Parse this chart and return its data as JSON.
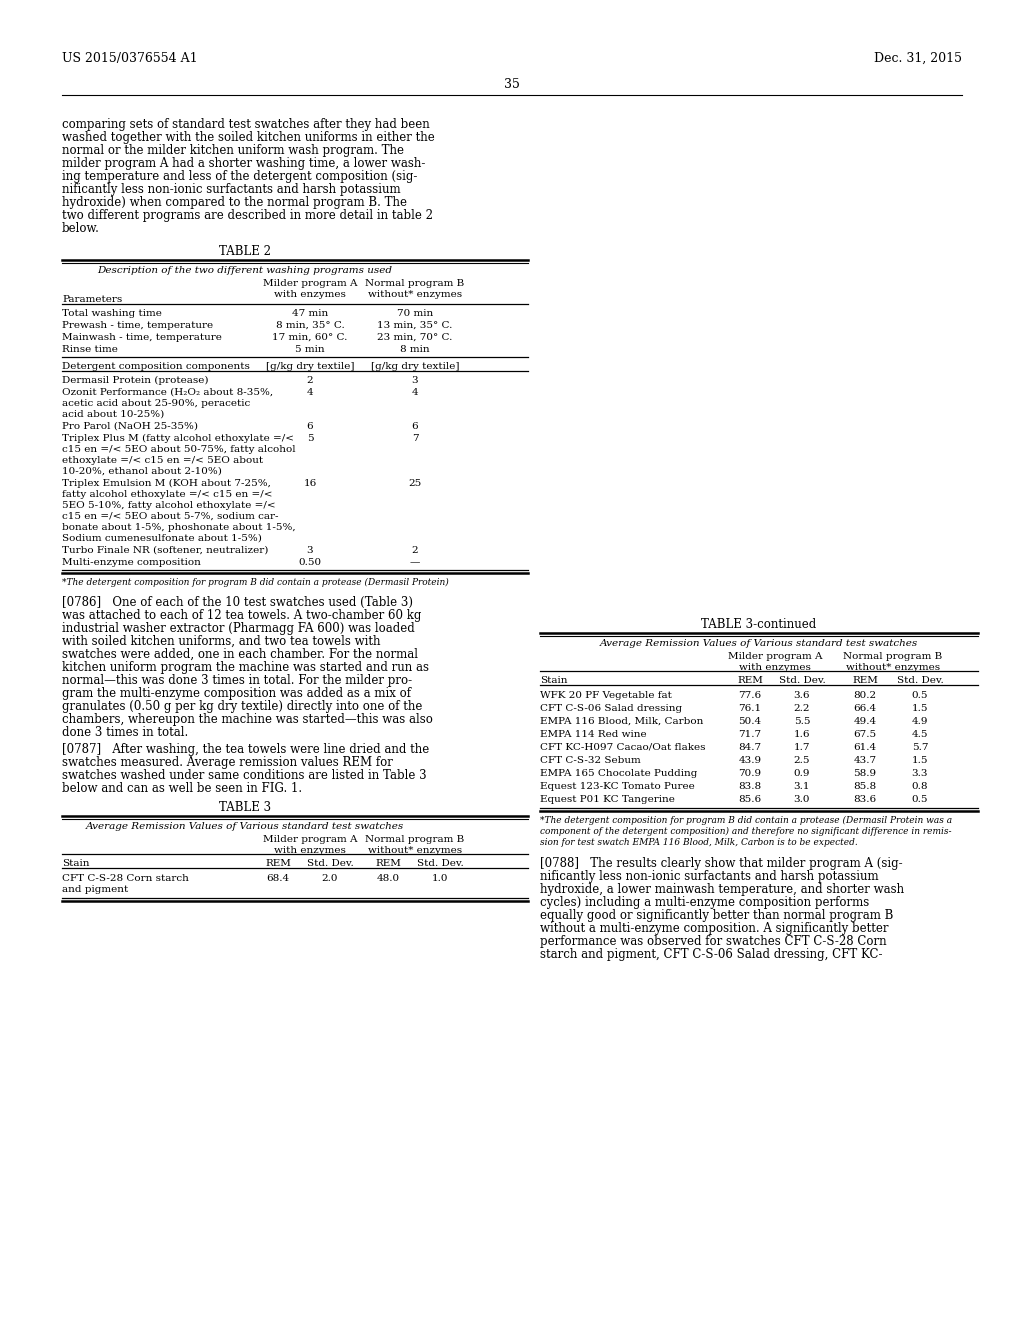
{
  "page_number": "35",
  "header_left": "US 2015/0376554 A1",
  "header_right": "Dec. 31, 2015",
  "background_color": "#ffffff",
  "text_color": "#000000",
  "body_text_left": [
    "comparing sets of standard test swatches after they had been",
    "washed together with the soiled kitchen uniforms in either the",
    "normal or the milder kitchen uniform wash program. The",
    "milder program A had a shorter washing time, a lower wash-",
    "ing temperature and less of the detergent composition (sig-",
    "nificantly less non-ionic surfactants and harsh potassium",
    "hydroxide) when compared to the normal program B. The",
    "two different programs are described in more detail in table 2",
    "below."
  ],
  "table2_title": "TABLE 2",
  "table2_subtitle": "Description of the two different washing programs used",
  "table2_col1": "Parameters",
  "table2_rows": [
    [
      "Total washing time",
      "47 min",
      "70 min"
    ],
    [
      "Prewash - time, temperature",
      "8 min, 35° C.",
      "13 min, 35° C."
    ],
    [
      "Mainwash - time, temperature",
      "17 min, 60° C.",
      "23 min, 70° C."
    ],
    [
      "Rinse time",
      "5 min",
      "8 min"
    ]
  ],
  "table2_det_col1": "Detergent composition components",
  "table2_det_col2": "[g/kg dry textile]",
  "table2_det_col3": "[g/kg dry textile]",
  "table2_det_rows": [
    [
      "Dermasil Protein (protease)",
      "2",
      "3"
    ],
    [
      "Ozonit Performance (H₂O₂ about 8-35%,\nacetic acid about 25-90%, peracetic\nacid about 10-25%)",
      "4",
      "4"
    ],
    [
      "Pro Parol (NaOH 25-35%)",
      "6",
      "6"
    ],
    [
      "Triplex Plus M (fatty alcohol ethoxylate =/<\nc15 en =/< 5EO about 50-75%, fatty alcohol\nethoxylate =/< c15 en =/< 5EO about\n10-20%, ethanol about 2-10%)",
      "5",
      "7"
    ],
    [
      "Triplex Emulsion M (KOH about 7-25%,\nfatty alcohol ethoxylate =/< c15 en =/<\n5EO 5-10%, fatty alcohol ethoxylate =/<\nc15 en =/< 5EO about 5-7%, sodium car-\nbonate about 1-5%, phoshonate about 1-5%,\nSodium cumenesulfonate about 1-5%)",
      "16",
      "25"
    ],
    [
      "Turbo Finale NR (softener, neutralizer)",
      "3",
      "2"
    ],
    [
      "Multi-enzyme composition",
      "0.50",
      "—"
    ]
  ],
  "table2_footnote": "*The detergent composition for program B did contain a protease (Dermasil Protein)",
  "para786_lines": [
    "[0786]   One of each of the 10 test swatches used (Table 3)",
    "was attached to each of 12 tea towels. A two-chamber 60 kg",
    "industrial washer extractor (Pharmagg FA 600) was loaded",
    "with soiled kitchen uniforms, and two tea towels with",
    "swatches were added, one in each chamber. For the normal",
    "kitchen uniform program the machine was started and run as",
    "normal—this was done 3 times in total. For the milder pro-",
    "gram the multi-enzyme composition was added as a mix of",
    "granulates (0.50 g per kg dry textile) directly into one of the",
    "chambers, whereupon the machine was started—this was also",
    "done 3 times in total."
  ],
  "para787_lines": [
    "[0787]   After washing, the tea towels were line dried and the",
    "swatches measured. Average remission values REM for",
    "swatches washed under same conditions are listed in Table 3",
    "below and can as well be seen in FIG. 1."
  ],
  "table3_title": "TABLE 3",
  "table3_subtitle": "Average Remission Values of Various standard test swatches",
  "table3_subheader": [
    "Stain",
    "REM",
    "Std. Dev.",
    "REM",
    "Std. Dev."
  ],
  "table3_rows": [
    [
      "CFT C-S-28 Corn starch\nand pigment",
      "68.4",
      "2.0",
      "48.0",
      "1.0"
    ]
  ],
  "table3cont_title": "TABLE 3-continued",
  "table3cont_subtitle": "Average Remission Values of Various standard test swatches",
  "table3cont_subheader": [
    "Stain",
    "REM",
    "Std. Dev.",
    "REM",
    "Std. Dev."
  ],
  "table3cont_rows": [
    [
      "WFK 20 PF Vegetable fat",
      "77.6",
      "3.6",
      "80.2",
      "0.5"
    ],
    [
      "CFT C-S-06 Salad dressing",
      "76.1",
      "2.2",
      "66.4",
      "1.5"
    ],
    [
      "EMPA 116 Blood, Milk, Carbon",
      "50.4",
      "5.5",
      "49.4",
      "4.9"
    ],
    [
      "EMPA 114 Red wine",
      "71.7",
      "1.6",
      "67.5",
      "4.5"
    ],
    [
      "CFT KC-H097 Cacao/Oat flakes",
      "84.7",
      "1.7",
      "61.4",
      "5.7"
    ],
    [
      "CFT C-S-32 Sebum",
      "43.9",
      "2.5",
      "43.7",
      "1.5"
    ],
    [
      "EMPA 165 Chocolate Pudding",
      "70.9",
      "0.9",
      "58.9",
      "3.3"
    ],
    [
      "Equest 123-KC Tomato Puree",
      "83.8",
      "3.1",
      "85.8",
      "0.8"
    ],
    [
      "Equest P01 KC Tangerine",
      "85.6",
      "3.0",
      "83.6",
      "0.5"
    ]
  ],
  "table3cont_footnote_lines": [
    "*The detergent composition for program B did contain a protease (Dermasil Protein was a",
    "component of the detergent composition) and therefore no significant difference in remis-",
    "sion for test swatch EMPA 116 Blood, Milk, Carbon is to be expected."
  ],
  "para788_lines": [
    "[0788]   The results clearly show that milder program A (sig-",
    "nificantly less non-ionic surfactants and harsh potassium",
    "hydroxide, a lower mainwash temperature, and shorter wash",
    "cycles) including a multi-enzyme composition performs",
    "equally good or significantly better than normal program B",
    "without a multi-enzyme composition. A significantly better",
    "performance was observed for swatches CFT C-S-28 Corn",
    "starch and pigment, CFT C-S-06 Salad dressing, CFT KC-"
  ]
}
